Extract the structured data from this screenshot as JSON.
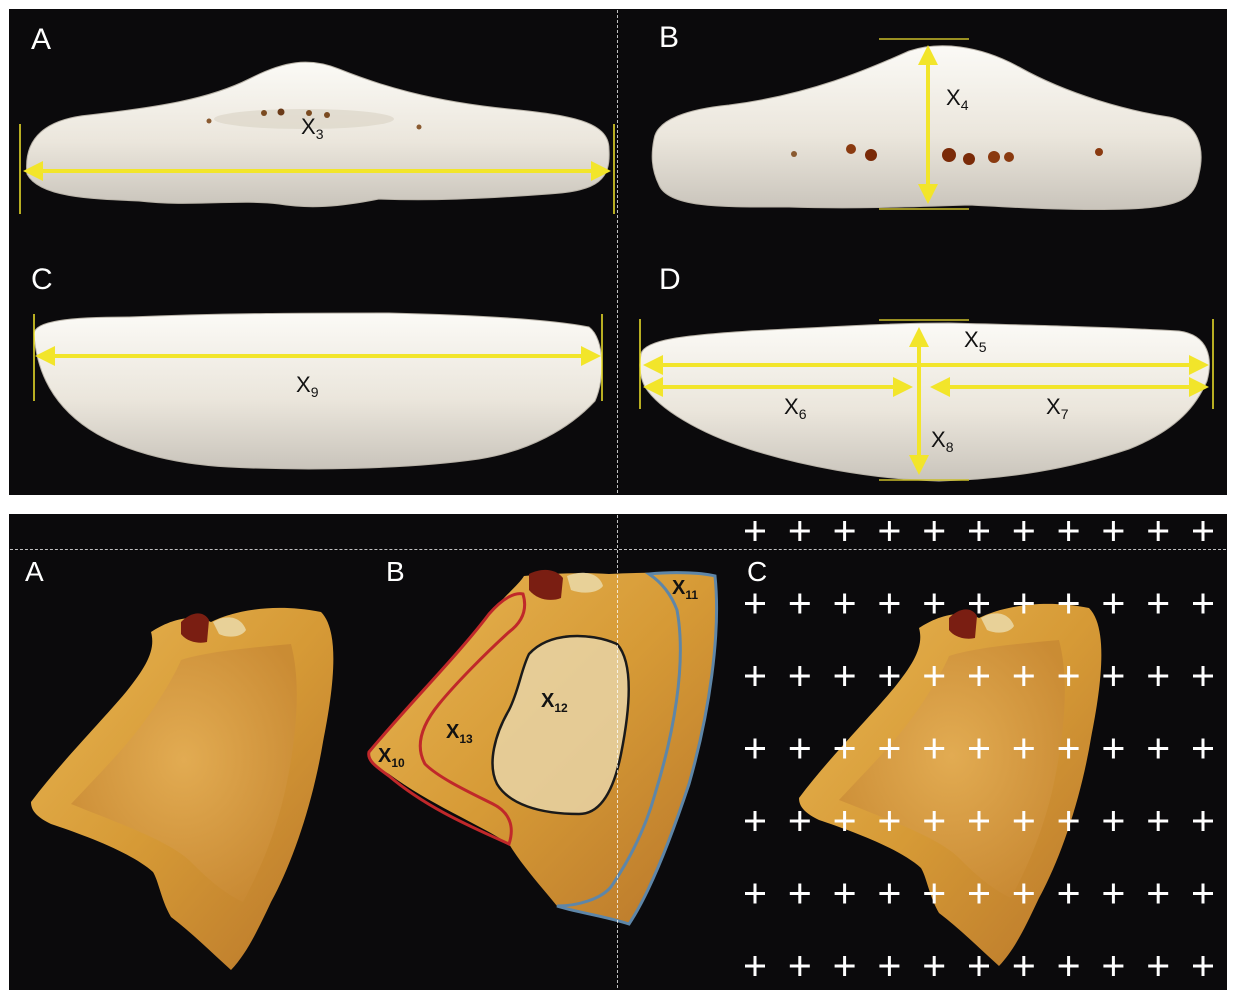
{
  "top_figure": {
    "panels": [
      {
        "id": "A",
        "label": "A",
        "measurement": {
          "letter": "X",
          "subscript": "3"
        }
      },
      {
        "id": "B",
        "label": "B",
        "measurement": {
          "letter": "X",
          "subscript": "4"
        }
      },
      {
        "id": "C",
        "label": "C",
        "measurement": {
          "letter": "X",
          "subscript": "9"
        }
      },
      {
        "id": "D",
        "label": "D",
        "measurements": [
          {
            "letter": "X",
            "subscript": "5"
          },
          {
            "letter": "X",
            "subscript": "6"
          },
          {
            "letter": "X",
            "subscript": "7"
          },
          {
            "letter": "X",
            "subscript": "8"
          }
        ]
      }
    ]
  },
  "bottom_figure": {
    "panels": [
      {
        "id": "A",
        "label": "A"
      },
      {
        "id": "B",
        "label": "B",
        "regions": [
          {
            "letter": "X",
            "subscript": "10",
            "outline_color": "#c0282a"
          },
          {
            "letter": "X",
            "subscript": "11",
            "outline_color": "#5e86a8"
          },
          {
            "letter": "X",
            "subscript": "12",
            "outline_color": "#1a1a1a"
          },
          {
            "letter": "X",
            "subscript": "13",
            "outline_color": "#c0282a"
          }
        ]
      },
      {
        "id": "C",
        "label": "C",
        "grid_symbol": "+"
      }
    ]
  },
  "colors": {
    "background": "#0b0a0c",
    "arrow": "#f2e52a",
    "bone": "#ece8df",
    "section": "#d9a23c"
  }
}
